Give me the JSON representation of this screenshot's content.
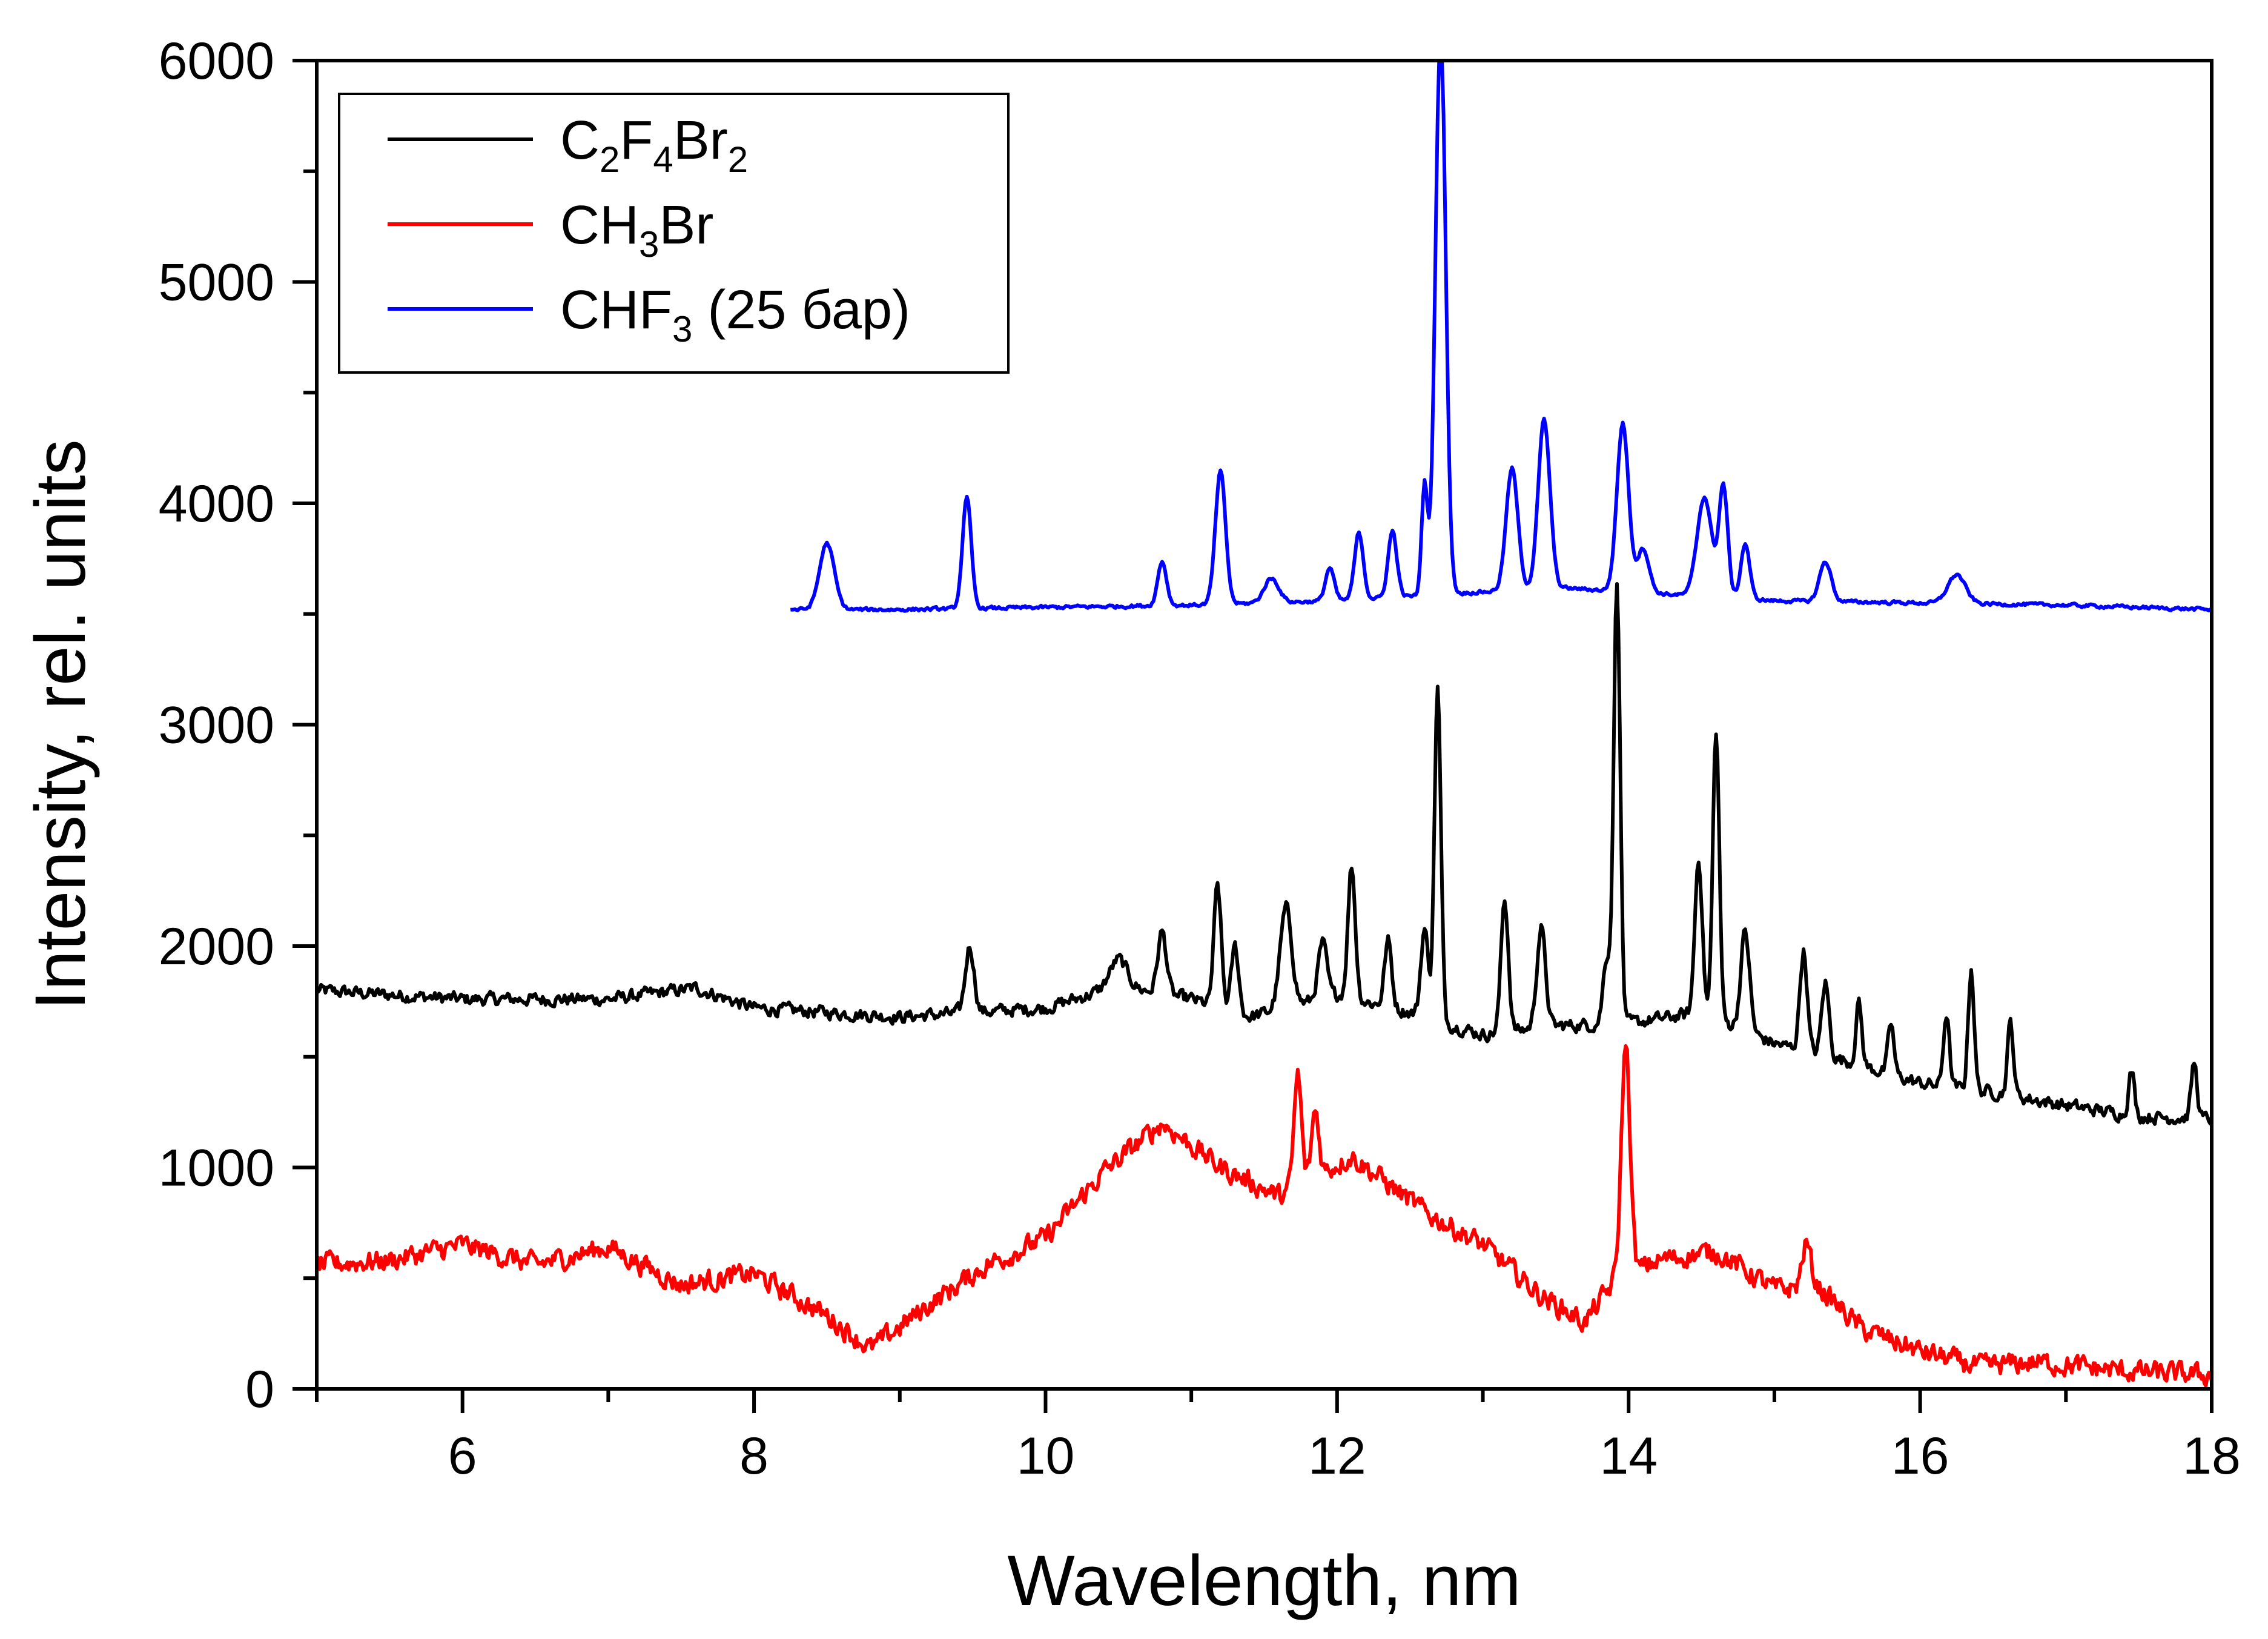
{
  "chart_data": {
    "type": "line",
    "title": "",
    "xlabel": "Wavelength, nm",
    "ylabel": "Intensity, rel. units",
    "xlim": [
      5,
      18
    ],
    "ylim": [
      0,
      6000
    ],
    "x_ticks": [
      6,
      8,
      10,
      12,
      14,
      16,
      18
    ],
    "y_ticks": [
      0,
      1000,
      2000,
      3000,
      4000,
      5000,
      6000
    ],
    "x_tick_labels": [
      "6",
      "8",
      "10",
      "12",
      "14",
      "16",
      "18"
    ],
    "y_tick_labels": [
      "0",
      "1000",
      "2000",
      "3000",
      "4000",
      "5000",
      "6000"
    ],
    "grid": false,
    "legend_position": "top-left",
    "series": [
      {
        "name": "C2F4Br2",
        "legend_parts": [
          [
            "C",
            ""
          ],
          [
            "2",
            "sub"
          ],
          [
            "F",
            ""
          ],
          [
            "4",
            "sub"
          ],
          [
            "Br",
            ""
          ],
          [
            "2",
            "sub"
          ]
        ],
        "color": "#000000",
        "baseline": [
          [
            5.0,
            1800
          ],
          [
            6.0,
            1760
          ],
          [
            7.0,
            1760
          ],
          [
            7.6,
            1810
          ],
          [
            8.0,
            1720
          ],
          [
            8.5,
            1700
          ],
          [
            9.0,
            1680
          ],
          [
            9.5,
            1700
          ],
          [
            10.0,
            1720
          ],
          [
            10.5,
            1820
          ],
          [
            11.0,
            1760
          ],
          [
            11.4,
            1680
          ],
          [
            12.0,
            1780
          ],
          [
            12.5,
            1700
          ],
          [
            13.0,
            1600
          ],
          [
            13.5,
            1640
          ],
          [
            14.0,
            1650
          ],
          [
            14.5,
            1700
          ],
          [
            15.0,
            1560
          ],
          [
            15.5,
            1480
          ],
          [
            16.0,
            1380
          ],
          [
            16.5,
            1340
          ],
          [
            17.0,
            1280
          ],
          [
            17.5,
            1230
          ],
          [
            18.0,
            1220
          ]
        ],
        "peaks": [
          [
            9.48,
            300,
            0.03
          ],
          [
            10.5,
            120,
            0.06
          ],
          [
            10.8,
            280,
            0.03
          ],
          [
            11.18,
            550,
            0.025
          ],
          [
            11.3,
            300,
            0.025
          ],
          [
            11.65,
            450,
            0.04
          ],
          [
            11.9,
            250,
            0.03
          ],
          [
            12.1,
            600,
            0.025
          ],
          [
            12.35,
            300,
            0.025
          ],
          [
            12.6,
            400,
            0.025
          ],
          [
            12.69,
            1500,
            0.022
          ],
          [
            13.15,
            600,
            0.025
          ],
          [
            13.4,
            450,
            0.03
          ],
          [
            13.85,
            300,
            0.025
          ],
          [
            13.92,
            2000,
            0.022
          ],
          [
            14.48,
            700,
            0.025
          ],
          [
            14.6,
            1300,
            0.022
          ],
          [
            14.8,
            450,
            0.03
          ],
          [
            15.2,
            450,
            0.025
          ],
          [
            15.35,
            330,
            0.025
          ],
          [
            15.58,
            280,
            0.02
          ],
          [
            15.8,
            230,
            0.02
          ],
          [
            16.18,
            330,
            0.02
          ],
          [
            16.35,
            550,
            0.02
          ],
          [
            16.62,
            330,
            0.02
          ],
          [
            17.45,
            200,
            0.02
          ],
          [
            17.88,
            250,
            0.02
          ]
        ],
        "noise": 45
      },
      {
        "name": "CH3Br",
        "legend_parts": [
          [
            "CH",
            ""
          ],
          [
            "3",
            "sub"
          ],
          [
            "Br",
            ""
          ]
        ],
        "color": "#ff0000",
        "baseline": [
          [
            5.0,
            560
          ],
          [
            5.5,
            580
          ],
          [
            6.0,
            650
          ],
          [
            6.5,
            560
          ],
          [
            7.0,
            640
          ],
          [
            7.5,
            470
          ],
          [
            8.0,
            520
          ],
          [
            8.5,
            330
          ],
          [
            8.8,
            180
          ],
          [
            9.2,
            380
          ],
          [
            9.6,
            560
          ],
          [
            10.0,
            680
          ],
          [
            10.4,
            980
          ],
          [
            10.8,
            1200
          ],
          [
            11.2,
            1000
          ],
          [
            11.6,
            870
          ],
          [
            12.1,
            1050
          ],
          [
            12.6,
            800
          ],
          [
            13.0,
            650
          ],
          [
            13.4,
            420
          ],
          [
            13.7,
            300
          ],
          [
            13.9,
            480
          ],
          [
            14.2,
            580
          ],
          [
            14.6,
            620
          ],
          [
            15.0,
            450
          ],
          [
            15.3,
            460
          ],
          [
            15.6,
            270
          ],
          [
            16.0,
            170
          ],
          [
            16.4,
            100
          ],
          [
            16.8,
            120
          ],
          [
            17.4,
            80
          ],
          [
            18.0,
            60
          ]
        ],
        "peaks": [
          [
            11.73,
            500,
            0.025
          ],
          [
            11.85,
            300,
            0.025
          ],
          [
            13.98,
            1050,
            0.03
          ],
          [
            15.22,
            200,
            0.03
          ]
        ],
        "noise": 75
      },
      {
        "name": "CHF3 (25 бар)",
        "legend_parts": [
          [
            "CHF",
            ""
          ],
          [
            "3",
            "sub"
          ],
          [
            " (25 бар)",
            ""
          ]
        ],
        "color": "#0000ff",
        "start": 8.25,
        "baseline": [
          [
            8.25,
            3520
          ],
          [
            9.0,
            3520
          ],
          [
            10.0,
            3530
          ],
          [
            11.0,
            3540
          ],
          [
            12.0,
            3560
          ],
          [
            12.5,
            3580
          ],
          [
            13.0,
            3600
          ],
          [
            13.5,
            3620
          ],
          [
            14.0,
            3600
          ],
          [
            15.0,
            3560
          ],
          [
            16.0,
            3550
          ],
          [
            17.0,
            3540
          ],
          [
            18.0,
            3520
          ]
        ],
        "peaks": [
          [
            8.5,
            300,
            0.05
          ],
          [
            9.46,
            500,
            0.03
          ],
          [
            10.8,
            200,
            0.03
          ],
          [
            11.2,
            600,
            0.035
          ],
          [
            11.55,
            110,
            0.05
          ],
          [
            11.95,
            150,
            0.03
          ],
          [
            12.15,
            300,
            0.03
          ],
          [
            12.38,
            300,
            0.03
          ],
          [
            12.6,
            500,
            0.02
          ],
          [
            12.71,
            2550,
            0.035
          ],
          [
            13.2,
            550,
            0.04
          ],
          [
            13.42,
            760,
            0.04
          ],
          [
            13.96,
            760,
            0.04
          ],
          [
            14.1,
            200,
            0.04
          ],
          [
            14.52,
            450,
            0.05
          ],
          [
            14.65,
            500,
            0.03
          ],
          [
            14.8,
            250,
            0.03
          ],
          [
            15.35,
            180,
            0.04
          ],
          [
            16.25,
            130,
            0.06
          ]
        ],
        "noise": 12
      }
    ]
  }
}
